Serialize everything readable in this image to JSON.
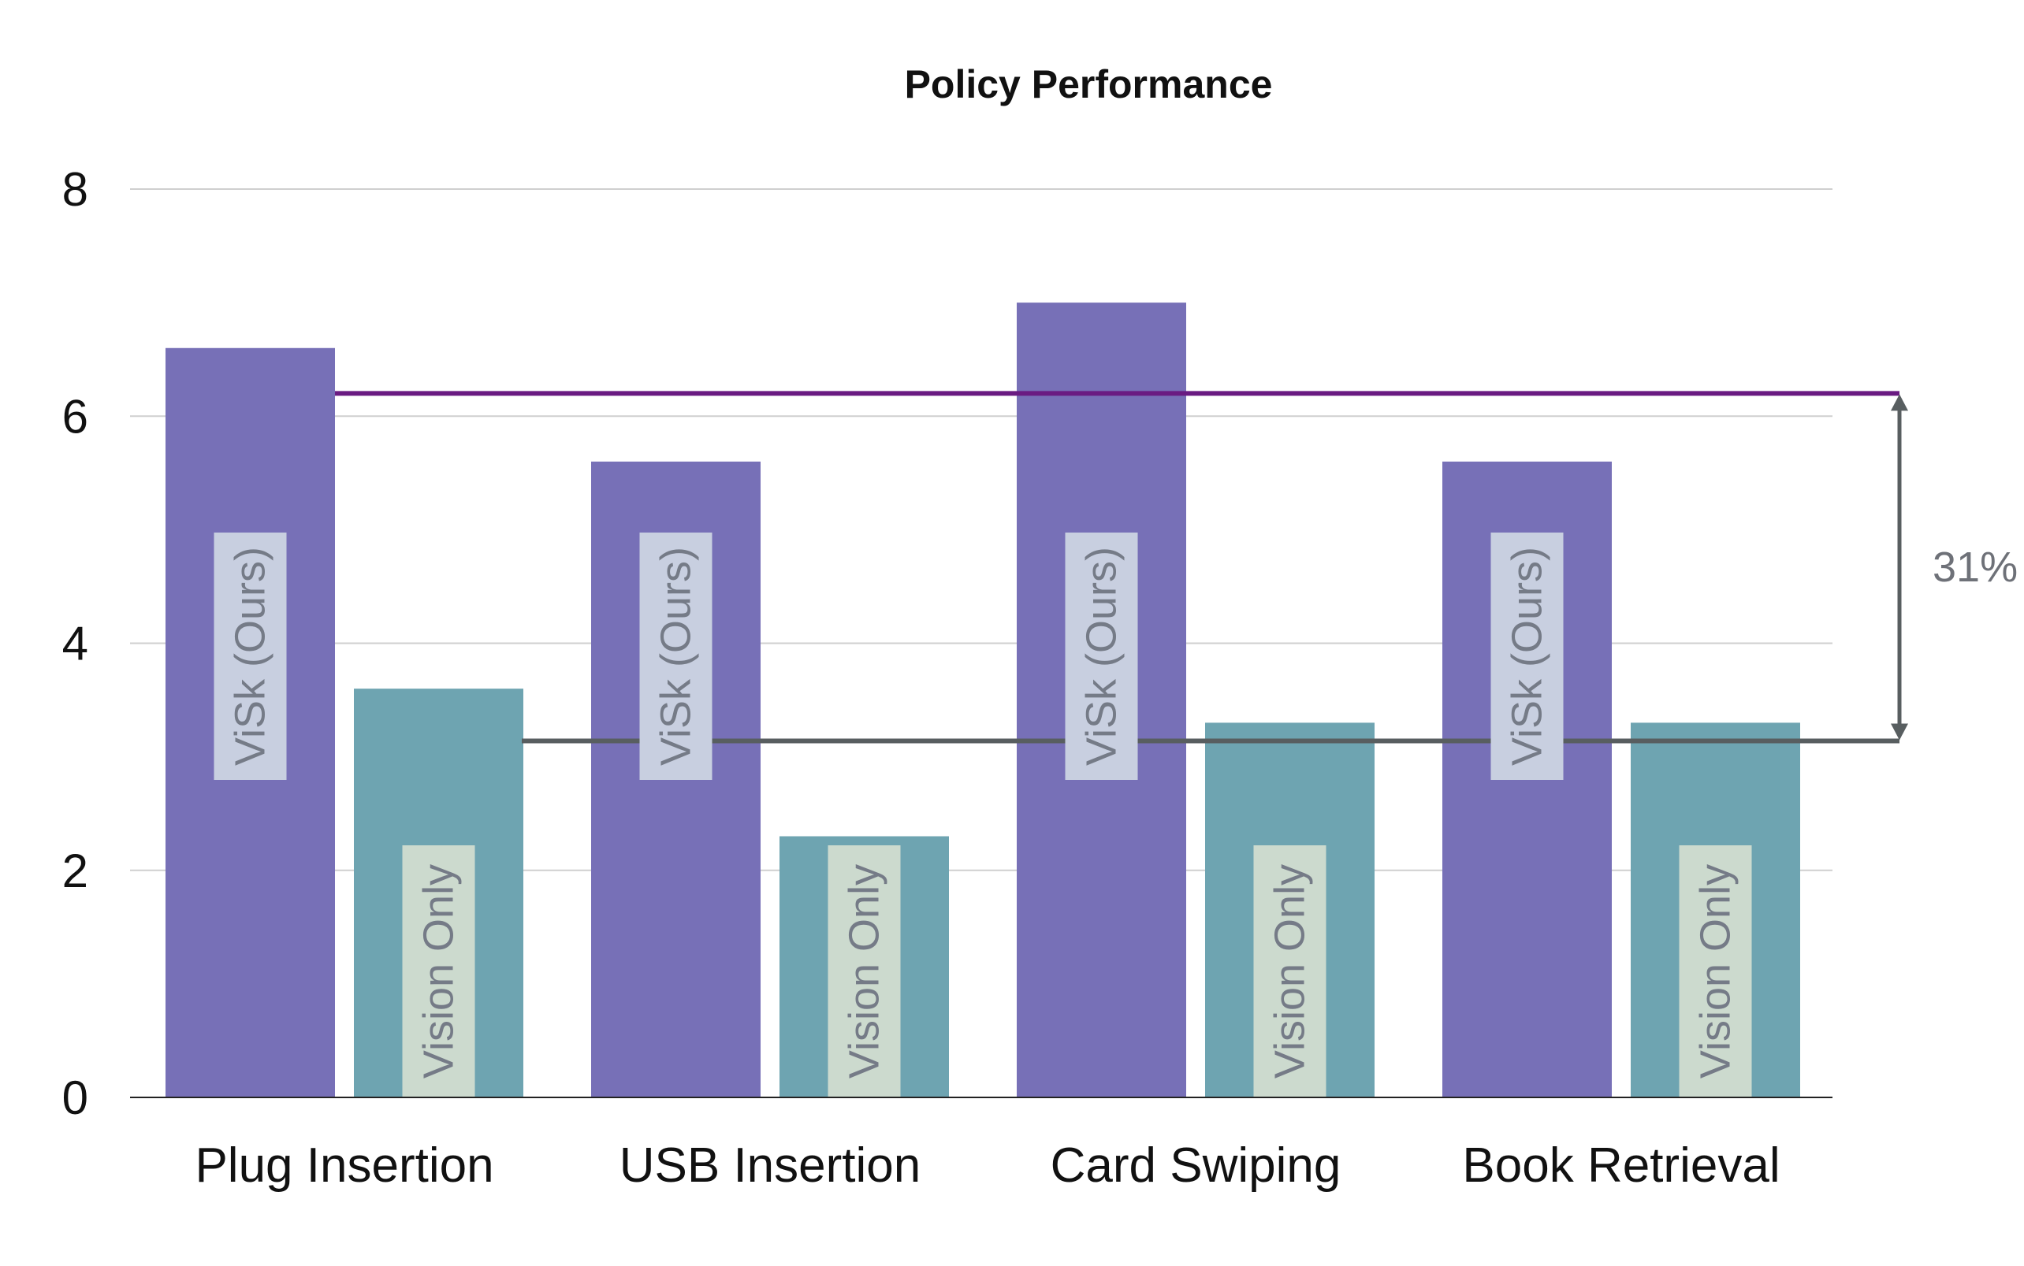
{
  "chart_data": {
    "type": "bar",
    "title": "Policy Performance",
    "xlabel": "",
    "ylabel": "",
    "ylim": [
      0,
      8
    ],
    "yticks": [
      0,
      2,
      4,
      6,
      8
    ],
    "grid": true,
    "legend": "none",
    "categories": [
      "Plug Insertion",
      "USB Insertion",
      "Card Swiping",
      "Book Retrieval"
    ],
    "series": [
      {
        "name": "ViSk (Ours)",
        "values": [
          6.6,
          5.6,
          7.0,
          5.6
        ],
        "color": "#7770b7",
        "label_bg": "#c8cfe0"
      },
      {
        "name": "Vision Only",
        "values": [
          3.6,
          2.3,
          3.3,
          3.3
        ],
        "color": "#6ea4b1",
        "label_bg": "#ccdace"
      }
    ],
    "reference_lines": [
      {
        "value": 6.2,
        "color": "#6a1b82"
      },
      {
        "value": 3.14,
        "color": "#585e60"
      }
    ],
    "annotation": {
      "text": "31%",
      "from": 3.14,
      "to": 6.2,
      "color": "#585e60"
    }
  }
}
